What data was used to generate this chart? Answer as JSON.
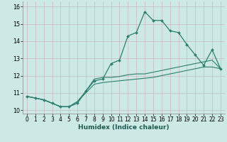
{
  "title": "",
  "xlabel": "Humidex (Indice chaleur)",
  "ylabel": "",
  "background_color": "#cce9e5",
  "grid_color": "#b8d8d4",
  "line_color": "#2e7d6e",
  "xlim": [
    -0.5,
    23.5
  ],
  "ylim": [
    9.8,
    16.3
  ],
  "yticks": [
    10,
    11,
    12,
    13,
    14,
    15,
    16
  ],
  "xticks": [
    0,
    1,
    2,
    3,
    4,
    5,
    6,
    7,
    8,
    9,
    10,
    11,
    12,
    13,
    14,
    15,
    16,
    17,
    18,
    19,
    20,
    21,
    22,
    23
  ],
  "series": [
    [
      10.8,
      10.7,
      10.6,
      10.4,
      10.2,
      10.2,
      10.4,
      11.1,
      11.7,
      11.8,
      12.7,
      12.9,
      14.3,
      14.5,
      15.7,
      15.2,
      15.2,
      14.6,
      14.5,
      13.8,
      13.2,
      12.6,
      13.5,
      12.4
    ],
    [
      10.8,
      10.7,
      10.6,
      10.4,
      10.2,
      10.2,
      10.5,
      11.1,
      11.8,
      11.9,
      11.9,
      11.95,
      12.05,
      12.1,
      12.1,
      12.2,
      12.3,
      12.4,
      12.5,
      12.6,
      12.7,
      12.8,
      12.9,
      12.4
    ],
    [
      10.8,
      10.7,
      10.6,
      10.4,
      10.2,
      10.2,
      10.5,
      11.0,
      11.5,
      11.6,
      11.65,
      11.7,
      11.75,
      11.8,
      11.85,
      11.9,
      12.0,
      12.1,
      12.2,
      12.3,
      12.4,
      12.5,
      12.5,
      12.4
    ]
  ],
  "xlabel_fontsize": 6.5,
  "tick_fontsize": 5.5
}
